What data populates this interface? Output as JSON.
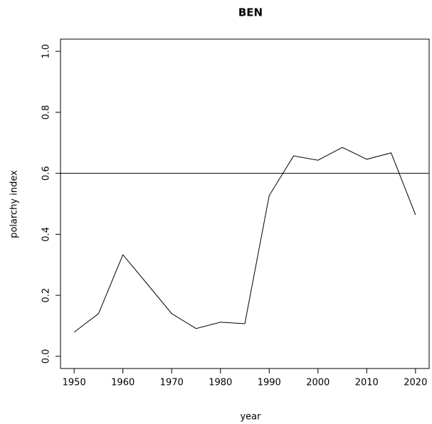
{
  "chart_data": {
    "type": "line",
    "title": "BEN",
    "x_label": "year",
    "y_label": "polarchy index",
    "x": [
      1950,
      1955,
      1960,
      1965,
      1970,
      1975,
      1980,
      1985,
      1990,
      1995,
      2000,
      2005,
      2010,
      2015,
      2020
    ],
    "series": [
      {
        "color": "#000000",
        "values": [
          0.079,
          0.14,
          0.333,
          0.237,
          0.14,
          0.091,
          0.112,
          0.107,
          0.527,
          0.657,
          0.643,
          0.685,
          0.646,
          0.667,
          0.464
        ]
      }
    ],
    "xlim": [
      1947.2,
      2022.8
    ],
    "xticks": [
      1950,
      1960,
      1970,
      1980,
      1990,
      2000,
      2010,
      2020
    ],
    "ylim": [
      -0.04,
      1.04
    ],
    "yticks": [
      {
        "value": 0,
        "label": "0.0"
      },
      0.2,
      0.4,
      0.6,
      0.8,
      {
        "value": 1,
        "label": "1.0"
      }
    ],
    "reference_line": 0.6
  }
}
